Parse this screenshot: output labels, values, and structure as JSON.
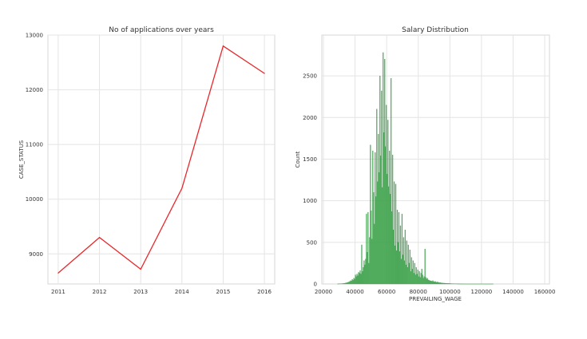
{
  "chart_data": [
    {
      "type": "line",
      "title": "No of applications over years",
      "xlabel": "",
      "ylabel": "CASE_STATUS",
      "x": [
        2011,
        2012,
        2013,
        2014,
        2015,
        2016
      ],
      "x_ticks": [
        "2011",
        "2012",
        "2013",
        "2014",
        "2015",
        "2016"
      ],
      "y": [
        8650,
        9300,
        8720,
        10200,
        12800,
        12300
      ],
      "y_ticks": [
        "9000",
        "10000",
        "11000",
        "12000",
        "13000"
      ],
      "xlim": [
        2010.75,
        2016.25
      ],
      "ylim": [
        8450,
        13000
      ],
      "grid": true,
      "color": "#e8282b"
    },
    {
      "type": "histogram",
      "title": "Salary Distribution",
      "xlabel": "PREVAILING_WAGE",
      "ylabel": "Count",
      "x_ticks": [
        "20000",
        "40000",
        "60000",
        "80000",
        "100000",
        "120000",
        "140000",
        "160000"
      ],
      "y_ticks": [
        "0",
        "500",
        "1000",
        "1500",
        "2000",
        "2500"
      ],
      "xlim": [
        19000,
        163000
      ],
      "ylim": [
        0,
        2990
      ],
      "bin_start": 29000,
      "bin_width": 500,
      "counts": [
        2,
        2,
        3,
        3,
        4,
        4,
        5,
        6,
        8,
        10,
        12,
        15,
        18,
        22,
        25,
        30,
        40,
        35,
        55,
        45,
        70,
        60,
        110,
        90,
        120,
        100,
        140,
        130,
        160,
        120,
        470,
        150,
        200,
        280,
        230,
        300,
        840,
        380,
        860,
        250,
        560,
        1670,
        880,
        540,
        1600,
        1100,
        720,
        1580,
        1050,
        2100,
        1230,
        1800,
        1340,
        2500,
        1540,
        2320,
        1160,
        2780,
        1820,
        2700,
        1650,
        2150,
        1320,
        1970,
        1170,
        1600,
        1080,
        2470,
        870,
        1550,
        650,
        1230,
        460,
        1200,
        400,
        890,
        500,
        860,
        390,
        700,
        300,
        840,
        350,
        560,
        280,
        650,
        230,
        520,
        200,
        470,
        250,
        410,
        150,
        320,
        180,
        280,
        130,
        250,
        110,
        200,
        120,
        170,
        90,
        150,
        80,
        130,
        180,
        110,
        70,
        90,
        420,
        80,
        60,
        70,
        50,
        45,
        40,
        38,
        35,
        30,
        40,
        28,
        25,
        30,
        22,
        20,
        25,
        18,
        15,
        16,
        14,
        12,
        12,
        10,
        9,
        10,
        8,
        7,
        8,
        6,
        6,
        6,
        5,
        5,
        4,
        4,
        4,
        3,
        3,
        3,
        3,
        2,
        2,
        2,
        2,
        2,
        1,
        2,
        1,
        1,
        1,
        1,
        1,
        1,
        1,
        1,
        1,
        1,
        1,
        1,
        1,
        1,
        1,
        1,
        1,
        1,
        1,
        1,
        1,
        1,
        1,
        1,
        1,
        1,
        1,
        1,
        1,
        1,
        1,
        1,
        1,
        1,
        1,
        1,
        1,
        1,
        1
      ],
      "grid": true,
      "color": "#3ca14a"
    }
  ]
}
